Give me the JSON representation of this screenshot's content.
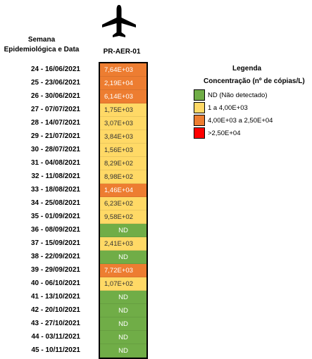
{
  "header": {
    "left_title_line1": "Semana",
    "left_title_line2": "Epidemiológica e Data",
    "column_title": "PR-AER-01",
    "icon": "airplane-icon"
  },
  "legend": {
    "title": "Legenda",
    "subtitle": "Concentração (nº de cópias/L)",
    "items": [
      {
        "label": "ND (Não detectado)",
        "color": "#70ad47"
      },
      {
        "label": "1 a 4,00E+03",
        "color": "#ffd966"
      },
      {
        "label": "4,00E+03 a 2,50E+04",
        "color": "#ed7d31"
      },
      {
        "label": ">2,50E+04",
        "color": "#ff0000"
      }
    ]
  },
  "chart_data": {
    "type": "heatmap",
    "title": "",
    "column": "PR-AER-01",
    "rows": [
      {
        "week": "24 - 16/06/2021",
        "value": "7,64E+03",
        "category": 2
      },
      {
        "week": "25 - 23/06/2021",
        "value": "2,19E+04",
        "category": 2
      },
      {
        "week": "26 - 30/06/2021",
        "value": "6,14E+03",
        "category": 2
      },
      {
        "week": "27 - 07/07/2021",
        "value": "1,75E+03",
        "category": 1
      },
      {
        "week": "28 - 14/07/2021",
        "value": "3,07E+03",
        "category": 1
      },
      {
        "week": "29 - 21/07/2021",
        "value": "3,84E+03",
        "category": 1
      },
      {
        "week": "30 - 28/07/2021",
        "value": "1,56E+03",
        "category": 1
      },
      {
        "week": "31 - 04/08/2021",
        "value": "8,29E+02",
        "category": 1
      },
      {
        "week": "32 - 11/08/2021",
        "value": "8,98E+02",
        "category": 1
      },
      {
        "week": "33 - 18/08/2021",
        "value": "1,46E+04",
        "category": 2
      },
      {
        "week": "34 - 25/08/2021",
        "value": "6,23E+02",
        "category": 1
      },
      {
        "week": "35 - 01/09/2021",
        "value": "9,58E+02",
        "category": 1
      },
      {
        "week": "36 - 08/09/2021",
        "value": "ND",
        "category": 0
      },
      {
        "week": "37 - 15/09/2021",
        "value": "2,41E+03",
        "category": 1
      },
      {
        "week": "38 - 22/09/2021",
        "value": "ND",
        "category": 0
      },
      {
        "week": "39 - 29/09/2021",
        "value": "7,72E+03",
        "category": 2
      },
      {
        "week": "40 - 06/10/2021",
        "value": "1,07E+02",
        "category": 1
      },
      {
        "week": "41 - 13/10/2021",
        "value": "ND",
        "category": 0
      },
      {
        "week": "42 - 20/10/2021",
        "value": "ND",
        "category": 0
      },
      {
        "week": "43 - 27/10/2021",
        "value": "ND",
        "category": 0
      },
      {
        "week": "44 - 03/11/2021",
        "value": "ND",
        "category": 0
      },
      {
        "week": "45 - 10/11/2021",
        "value": "ND",
        "category": 0
      }
    ],
    "category_colors": [
      "#70ad47",
      "#ffd966",
      "#ed7d31",
      "#ff0000"
    ]
  }
}
